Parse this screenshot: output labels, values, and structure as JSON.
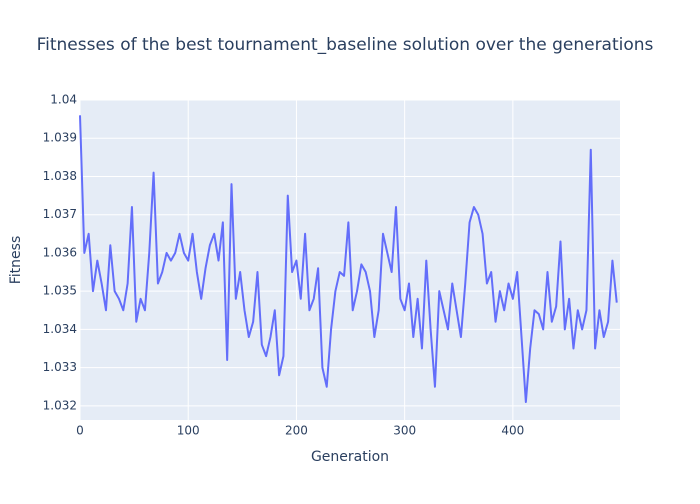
{
  "chart_data": {
    "type": "line",
    "title": "Fitnesses of the best tournament_baseline solution over the generations",
    "x_label": "Generation",
    "y_label": "Fitness",
    "x": [
      0,
      4,
      8,
      12,
      16,
      20,
      24,
      28,
      32,
      36,
      40,
      44,
      48,
      52,
      56,
      60,
      64,
      68,
      72,
      76,
      80,
      84,
      88,
      92,
      96,
      100,
      104,
      108,
      112,
      116,
      120,
      124,
      128,
      132,
      136,
      140,
      144,
      148,
      152,
      156,
      160,
      164,
      168,
      172,
      176,
      180,
      184,
      188,
      192,
      196,
      200,
      204,
      208,
      212,
      216,
      220,
      224,
      228,
      232,
      236,
      240,
      244,
      248,
      252,
      256,
      260,
      264,
      268,
      272,
      276,
      280,
      284,
      288,
      292,
      296,
      300,
      304,
      308,
      312,
      316,
      320,
      324,
      328,
      332,
      336,
      340,
      344,
      348,
      352,
      356,
      360,
      364,
      368,
      372,
      376,
      380,
      384,
      388,
      392,
      396,
      400,
      404,
      408,
      412,
      416,
      420,
      424,
      428,
      432,
      436,
      440,
      444,
      448,
      452,
      456,
      460,
      464,
      468,
      472,
      476,
      480,
      484,
      488,
      492,
      496
    ],
    "values": [
      1.0396,
      1.036,
      1.0365,
      1.035,
      1.0358,
      1.0352,
      1.0345,
      1.0362,
      1.035,
      1.0348,
      1.0345,
      1.0352,
      1.0372,
      1.0342,
      1.0348,
      1.0345,
      1.036,
      1.0381,
      1.0352,
      1.0355,
      1.036,
      1.0358,
      1.036,
      1.0365,
      1.036,
      1.0358,
      1.0365,
      1.0355,
      1.0348,
      1.0356,
      1.0362,
      1.0365,
      1.0358,
      1.0368,
      1.0332,
      1.0378,
      1.0348,
      1.0355,
      1.0345,
      1.0338,
      1.0342,
      1.0355,
      1.0336,
      1.0333,
      1.0338,
      1.0345,
      1.0328,
      1.0333,
      1.0375,
      1.0355,
      1.0358,
      1.0348,
      1.0365,
      1.0345,
      1.0348,
      1.0356,
      1.033,
      1.0325,
      1.034,
      1.035,
      1.0355,
      1.0354,
      1.0368,
      1.0345,
      1.035,
      1.0357,
      1.0355,
      1.035,
      1.0338,
      1.0345,
      1.0365,
      1.036,
      1.0355,
      1.0372,
      1.0348,
      1.0345,
      1.0352,
      1.0338,
      1.0348,
      1.0335,
      1.0358,
      1.034,
      1.0325,
      1.035,
      1.0345,
      1.034,
      1.0352,
      1.0345,
      1.0338,
      1.0352,
      1.0368,
      1.0372,
      1.037,
      1.0365,
      1.0352,
      1.0355,
      1.0342,
      1.035,
      1.0345,
      1.0352,
      1.0348,
      1.0355,
      1.0338,
      1.0321,
      1.0335,
      1.0345,
      1.0344,
      1.034,
      1.0355,
      1.0342,
      1.0346,
      1.0363,
      1.034,
      1.0348,
      1.0335,
      1.0345,
      1.034,
      1.0345,
      1.0387,
      1.0335,
      1.0345,
      1.0338,
      1.0342,
      1.0358,
      1.0347
    ],
    "color": "#636efa",
    "xlim": [
      0,
      499
    ],
    "xticks": [
      0,
      100,
      200,
      300,
      400
    ],
    "ylim": [
      1.03163,
      1.04
    ],
    "yticks": [
      1.032,
      1.033,
      1.034,
      1.035,
      1.036,
      1.037,
      1.038,
      1.039,
      1.04
    ],
    "grid": true
  }
}
